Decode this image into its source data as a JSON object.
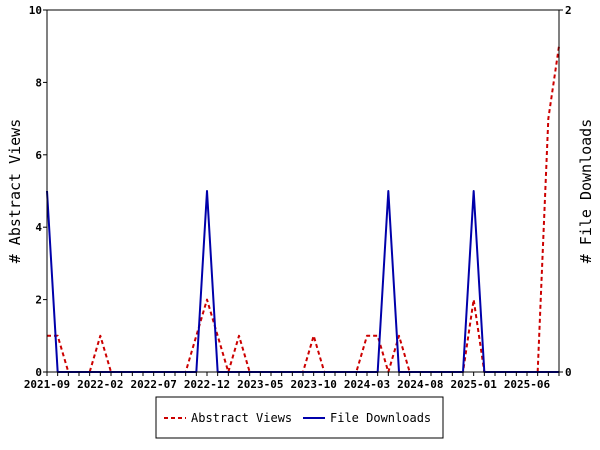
{
  "chart_data": {
    "type": "line",
    "title": "",
    "ylabel": "# Abstract Views",
    "y2label": "# File Downloads",
    "ylim": [
      0,
      10
    ],
    "y2lim": [
      0,
      2
    ],
    "yticks": [
      "0",
      "2",
      "4",
      "6",
      "8",
      "10"
    ],
    "y2ticks": [
      "0",
      "2"
    ],
    "xtick_labels": [
      "2021-09",
      "2022-02",
      "2022-07",
      "2022-12",
      "2023-05",
      "2023-10",
      "2024-03",
      "2024-08",
      "2025-01",
      "2025-06"
    ],
    "grid": false,
    "legend_position": "bottom",
    "x": [
      "2021-09",
      "2021-10",
      "2021-11",
      "2021-12",
      "2022-01",
      "2022-02",
      "2022-03",
      "2022-04",
      "2022-05",
      "2022-06",
      "2022-07",
      "2022-08",
      "2022-09",
      "2022-10",
      "2022-11",
      "2022-12",
      "2023-01",
      "2023-02",
      "2023-03",
      "2023-04",
      "2023-05",
      "2023-06",
      "2023-07",
      "2023-08",
      "2023-09",
      "2023-10",
      "2023-11",
      "2023-12",
      "2024-01",
      "2024-02",
      "2024-03",
      "2024-04",
      "2024-05",
      "2024-06",
      "2024-07",
      "2024-08",
      "2024-09",
      "2024-10",
      "2024-11",
      "2024-12",
      "2025-01",
      "2025-02",
      "2025-03",
      "2025-04",
      "2025-05",
      "2025-06",
      "2025-07",
      "2025-08",
      "2025-09"
    ],
    "series": [
      {
        "name": "Abstract Views",
        "axis": "left",
        "color": "#cc0000",
        "dash": true,
        "values": [
          1,
          1,
          0,
          0,
          0,
          1,
          0,
          0,
          0,
          0,
          0,
          0,
          0,
          0,
          1,
          2,
          1,
          0,
          1,
          0,
          0,
          0,
          0,
          0,
          0,
          1,
          0,
          0,
          0,
          0,
          1,
          1,
          0,
          1,
          0,
          0,
          0,
          0,
          0,
          0,
          2,
          0,
          0,
          0,
          0,
          0,
          0,
          7,
          9
        ]
      },
      {
        "name": "File Downloads",
        "axis": "right",
        "color": "#0000aa",
        "dash": false,
        "values": [
          1,
          0,
          0,
          0,
          0,
          0,
          0,
          0,
          0,
          0,
          0,
          0,
          0,
          0,
          0,
          1,
          0,
          0,
          0,
          0,
          0,
          0,
          0,
          0,
          0,
          0,
          0,
          0,
          0,
          0,
          0,
          0,
          1,
          0,
          0,
          0,
          0,
          0,
          0,
          0,
          1,
          0,
          0,
          0,
          0,
          0,
          0,
          0,
          0
        ]
      }
    ]
  }
}
